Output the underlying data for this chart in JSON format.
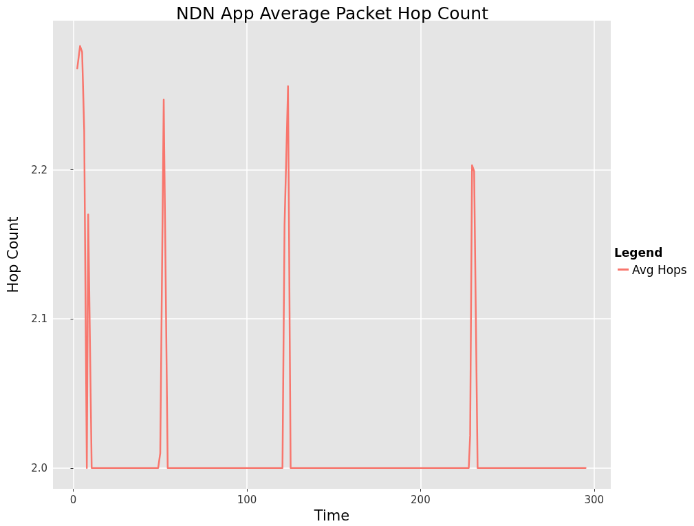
{
  "chart_data": {
    "type": "line",
    "title": "NDN App Average Packet Hop Count",
    "xlabel": "Time",
    "ylabel": "Hop Count",
    "legend_title": "Legend",
    "series": [
      {
        "name": "Avg Hops",
        "color": "#f8766d",
        "x": [
          2.3,
          3.9,
          5.1,
          6.3,
          7.8,
          8.6,
          10.6,
          48.9,
          50.1,
          52.1,
          54.4,
          120.5,
          121.7,
          123.7,
          125.2,
          227.8,
          228.6,
          229.7,
          230.9,
          232.9,
          295.1
        ],
        "values": [
          2.268,
          2.283,
          2.279,
          2.226,
          2.0,
          2.17,
          2.0,
          2.0,
          2.01,
          2.247,
          2.0,
          2.0,
          2.163,
          2.256,
          2.0,
          2.0,
          2.022,
          2.203,
          2.199,
          2.0,
          2.0
        ]
      }
    ],
    "xlim": [
      -11.7,
      309.6
    ],
    "ylim": [
      1.986,
      2.3
    ],
    "xticks": [
      0,
      100,
      200,
      300
    ],
    "yticks": [
      {
        "value": 2,
        "label": "2.0"
      },
      2.1,
      2.2
    ],
    "grid": true,
    "legend": "right",
    "marker": "none",
    "line_style": "solid"
  }
}
